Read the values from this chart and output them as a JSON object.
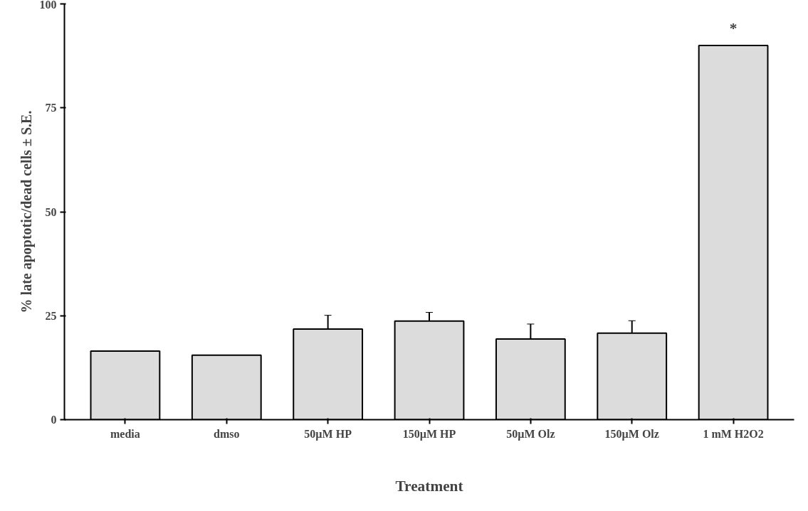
{
  "chart_data": {
    "type": "bar",
    "xlabel": "Treatment",
    "ylabel": "% late apoptotic/dead cells ± S.E.",
    "categories": [
      "media",
      "dmso",
      "50µM HP",
      "150µM HP",
      "50µM Olz",
      "150µM Olz",
      "1 mM H2O2"
    ],
    "values": [
      16.5,
      15.5,
      21.8,
      23.7,
      19.4,
      20.8,
      90.0
    ],
    "color": "#dcdcdc",
    "errors": [
      null,
      null,
      [
        21.8,
        25.1
      ],
      [
        23.7,
        25.8
      ],
      [
        19.4,
        23.0
      ],
      [
        20.8,
        23.8
      ],
      null
    ],
    "ylim": [
      0,
      100
    ],
    "yticks": [
      0,
      25,
      50,
      75,
      100
    ],
    "grid": false,
    "annotations": [
      "*"
    ]
  }
}
